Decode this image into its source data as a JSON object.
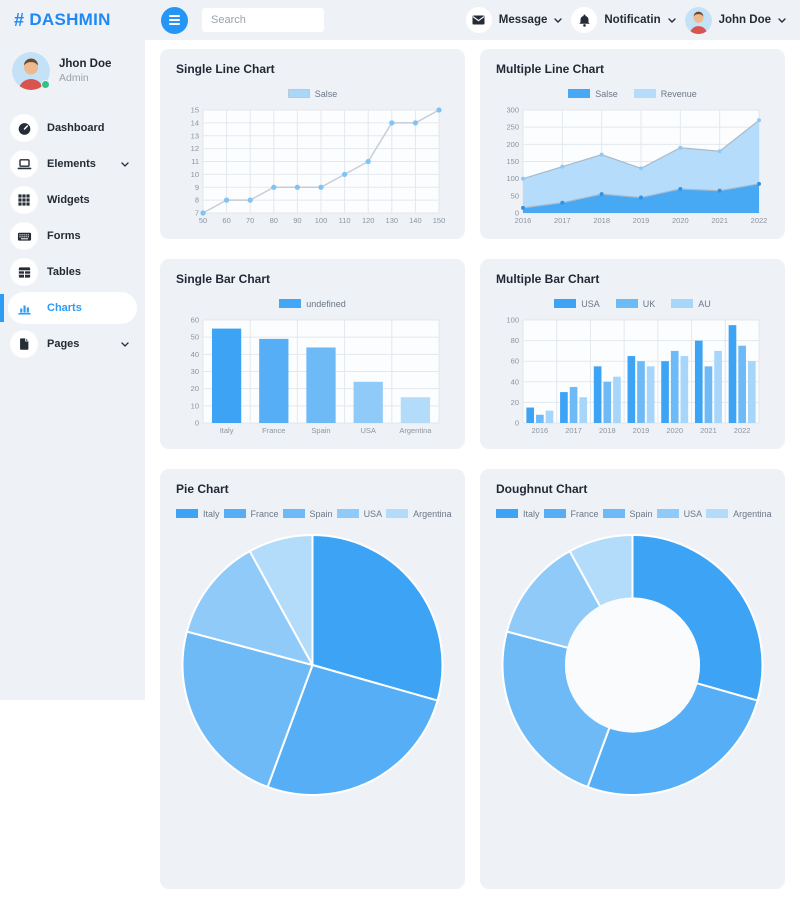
{
  "header": {
    "brand_hash": "#",
    "brand": "DASHMIN",
    "search_placeholder": "Search",
    "message_label": "Message",
    "notification_label": "Notificatin",
    "user_name": "John Doe"
  },
  "sidebar": {
    "user": {
      "name": "Jhon Doe",
      "role": "Admin"
    },
    "items": [
      {
        "label": "Dashboard",
        "icon": "gauge-icon",
        "active": false,
        "chevron": false
      },
      {
        "label": "Elements",
        "icon": "laptop-icon",
        "active": false,
        "chevron": true
      },
      {
        "label": "Widgets",
        "icon": "grid-icon",
        "active": false,
        "chevron": false
      },
      {
        "label": "Forms",
        "icon": "keyboard-icon",
        "active": false,
        "chevron": false
      },
      {
        "label": "Tables",
        "icon": "table-icon",
        "active": false,
        "chevron": false
      },
      {
        "label": "Charts",
        "icon": "chart-bar-icon",
        "active": true,
        "chevron": false
      },
      {
        "label": "Pages",
        "icon": "file-icon",
        "active": false,
        "chevron": true
      }
    ]
  },
  "colors": {
    "accent_blue": "#2d9cf4",
    "brand_blue": "#1e88f5",
    "surface_gray": "#eef1f6",
    "grid_line": "#e3e8ee",
    "tick_text": "#8b95a1",
    "status_green": "#2ec486",
    "blue_shades": [
      "#3da3f5",
      "#55aef6",
      "#6ebaf7",
      "#8fcaf9",
      "#b3dcfa"
    ]
  },
  "chart_data": [
    {
      "type": "line",
      "title": "Single Line Chart",
      "x": [
        "50",
        "60",
        "70",
        "80",
        "90",
        "100",
        "110",
        "120",
        "130",
        "140",
        "150"
      ],
      "yticks": [
        7,
        8,
        9,
        10,
        11,
        12,
        13,
        14,
        15
      ],
      "ylim": [
        7,
        15
      ],
      "grid": true,
      "legend_position": "top",
      "series": [
        {
          "name": "Salse",
          "values": [
            7,
            8,
            8,
            9,
            9,
            9,
            10,
            11,
            14,
            14,
            15
          ],
          "line_color": "#c7cdd6",
          "point_color": "#7fc3f7",
          "legend_fill": "#a9d7f9",
          "legend_border": "#c0c7d0"
        }
      ]
    },
    {
      "type": "area",
      "title": "Multiple Line Chart",
      "x": [
        "2016",
        "2017",
        "2018",
        "2019",
        "2020",
        "2021",
        "2022"
      ],
      "yticks": [
        0,
        50,
        100,
        150,
        200,
        250,
        300
      ],
      "ylim": [
        0,
        300
      ],
      "grid": true,
      "legend_position": "top",
      "series": [
        {
          "name": "Salse",
          "values": [
            15,
            30,
            55,
            45,
            70,
            65,
            85
          ],
          "fill": "#47a9f4",
          "point_color": "#2f93e6"
        },
        {
          "name": "Revenue",
          "values": [
            100,
            135,
            170,
            130,
            190,
            180,
            270
          ],
          "fill": "#b5dcfb",
          "point_color": "#8ec9f7"
        }
      ]
    },
    {
      "type": "bar",
      "title": "Single Bar Chart",
      "categories": [
        "Italy",
        "France",
        "Spain",
        "USA",
        "Argentina"
      ],
      "values": [
        55,
        49,
        44,
        24,
        15
      ],
      "colors": [
        "#3da3f5",
        "#55aef6",
        "#6ebaf7",
        "#8fcaf9",
        "#b3dcfa"
      ],
      "yticks": [
        0,
        10,
        20,
        30,
        40,
        50,
        60
      ],
      "ylim": [
        0,
        60
      ],
      "grid": true,
      "legend_position": "top",
      "legend": [
        {
          "label": "undefined",
          "color": "#42a7f5"
        }
      ]
    },
    {
      "type": "bar-multi",
      "title": "Multiple Bar Chart",
      "categories": [
        "2016",
        "2017",
        "2018",
        "2019",
        "2020",
        "2021",
        "2022"
      ],
      "yticks": [
        0,
        20,
        40,
        60,
        80,
        100
      ],
      "ylim": [
        0,
        100
      ],
      "grid": true,
      "legend_position": "top",
      "series": [
        {
          "name": "USA",
          "color": "#3da3f5",
          "values": [
            15,
            30,
            55,
            65,
            60,
            80,
            95
          ]
        },
        {
          "name": "UK",
          "color": "#6ebaf7",
          "values": [
            8,
            35,
            40,
            60,
            70,
            55,
            75
          ]
        },
        {
          "name": "AU",
          "color": "#a7d6fa",
          "values": [
            12,
            25,
            45,
            55,
            65,
            70,
            60
          ]
        }
      ]
    },
    {
      "type": "pie",
      "title": "Pie Chart",
      "categories": [
        "Italy",
        "France",
        "Spain",
        "USA",
        "Argentina"
      ],
      "values": [
        55,
        49,
        44,
        24,
        15
      ],
      "colors": [
        "#3da3f5",
        "#55aef6",
        "#6ebaf7",
        "#8fcaf9",
        "#b3dcfa"
      ],
      "legend_position": "top"
    },
    {
      "type": "doughnut",
      "title": "Doughnut Chart",
      "categories": [
        "Italy",
        "France",
        "Spain",
        "USA",
        "Argentina"
      ],
      "values": [
        55,
        49,
        44,
        24,
        15
      ],
      "colors": [
        "#3da3f5",
        "#55aef6",
        "#6ebaf7",
        "#8fcaf9",
        "#b3dcfa"
      ],
      "hole_ratio": 0.52,
      "legend_position": "top"
    }
  ]
}
